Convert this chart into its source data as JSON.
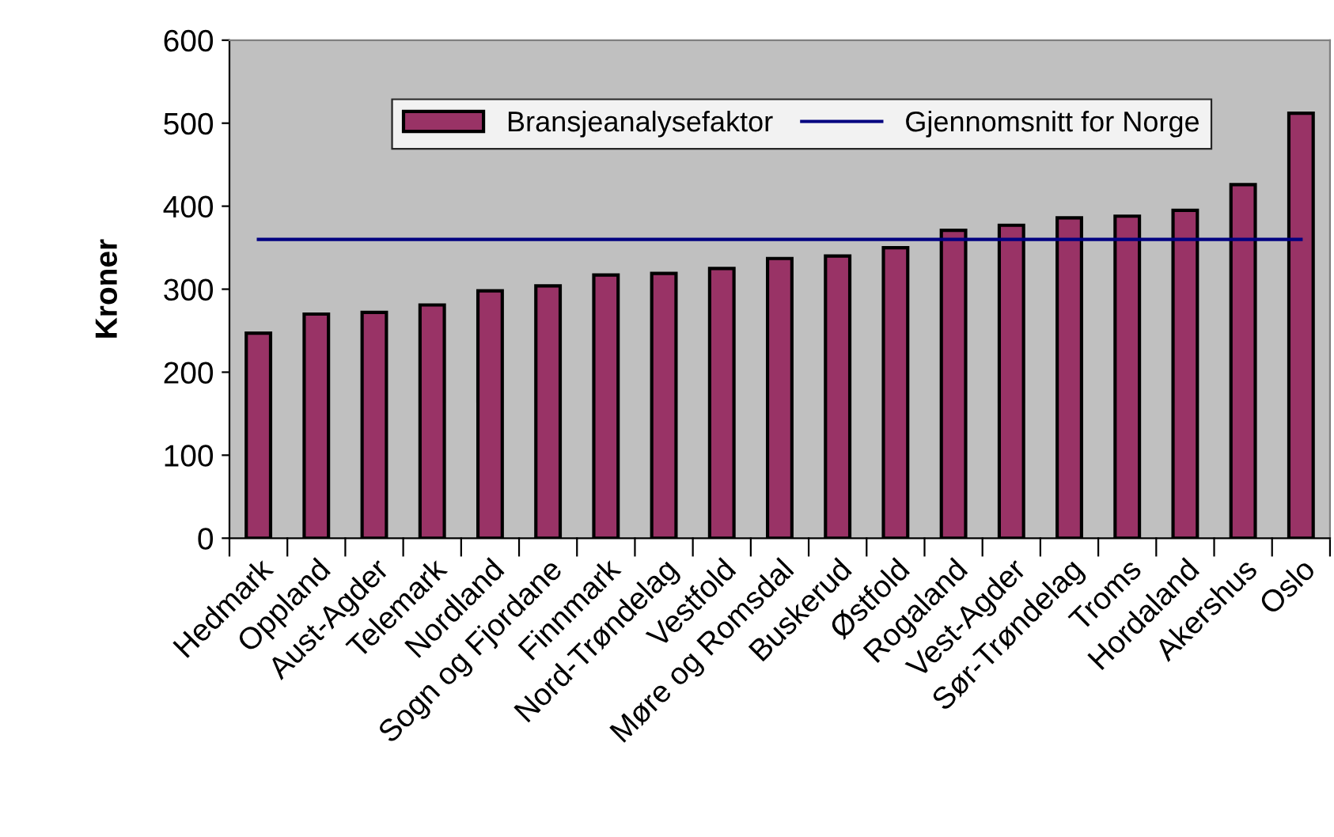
{
  "chart_data": {
    "type": "bar",
    "ylabel": "Kroner",
    "categories": [
      "Hedmark",
      "Oppland",
      "Aust-Agder",
      "Telemark",
      "Nordland",
      "Sogn og Fjordane",
      "Finnmark",
      "Nord-Trøndelag",
      "Vestfold",
      "Møre og Romsdal",
      "Buskerud",
      "Østfold",
      "Rogaland",
      "Vest-Agder",
      "Sør-Trøndelag",
      "Troms",
      "Hordaland",
      "Akershus",
      "Oslo"
    ],
    "series": [
      {
        "name": "Bransjeanalysefaktor",
        "color": "#993366",
        "values": [
          247,
          270,
          272,
          281,
          298,
          304,
          317,
          319,
          325,
          337,
          340,
          350,
          371,
          377,
          386,
          388,
          395,
          426,
          512
        ]
      },
      {
        "name": "Gjennomsnitt for Norge",
        "type": "line",
        "color": "#000080",
        "values": [
          360,
          360,
          360,
          360,
          360,
          360,
          360,
          360,
          360,
          360,
          360,
          360,
          360,
          360,
          360,
          360,
          360,
          360,
          360
        ]
      }
    ],
    "ylim": [
      0,
      600
    ],
    "yticks": [
      0,
      100,
      200,
      300,
      400,
      500,
      600
    ],
    "grid": false,
    "legend": "top"
  }
}
